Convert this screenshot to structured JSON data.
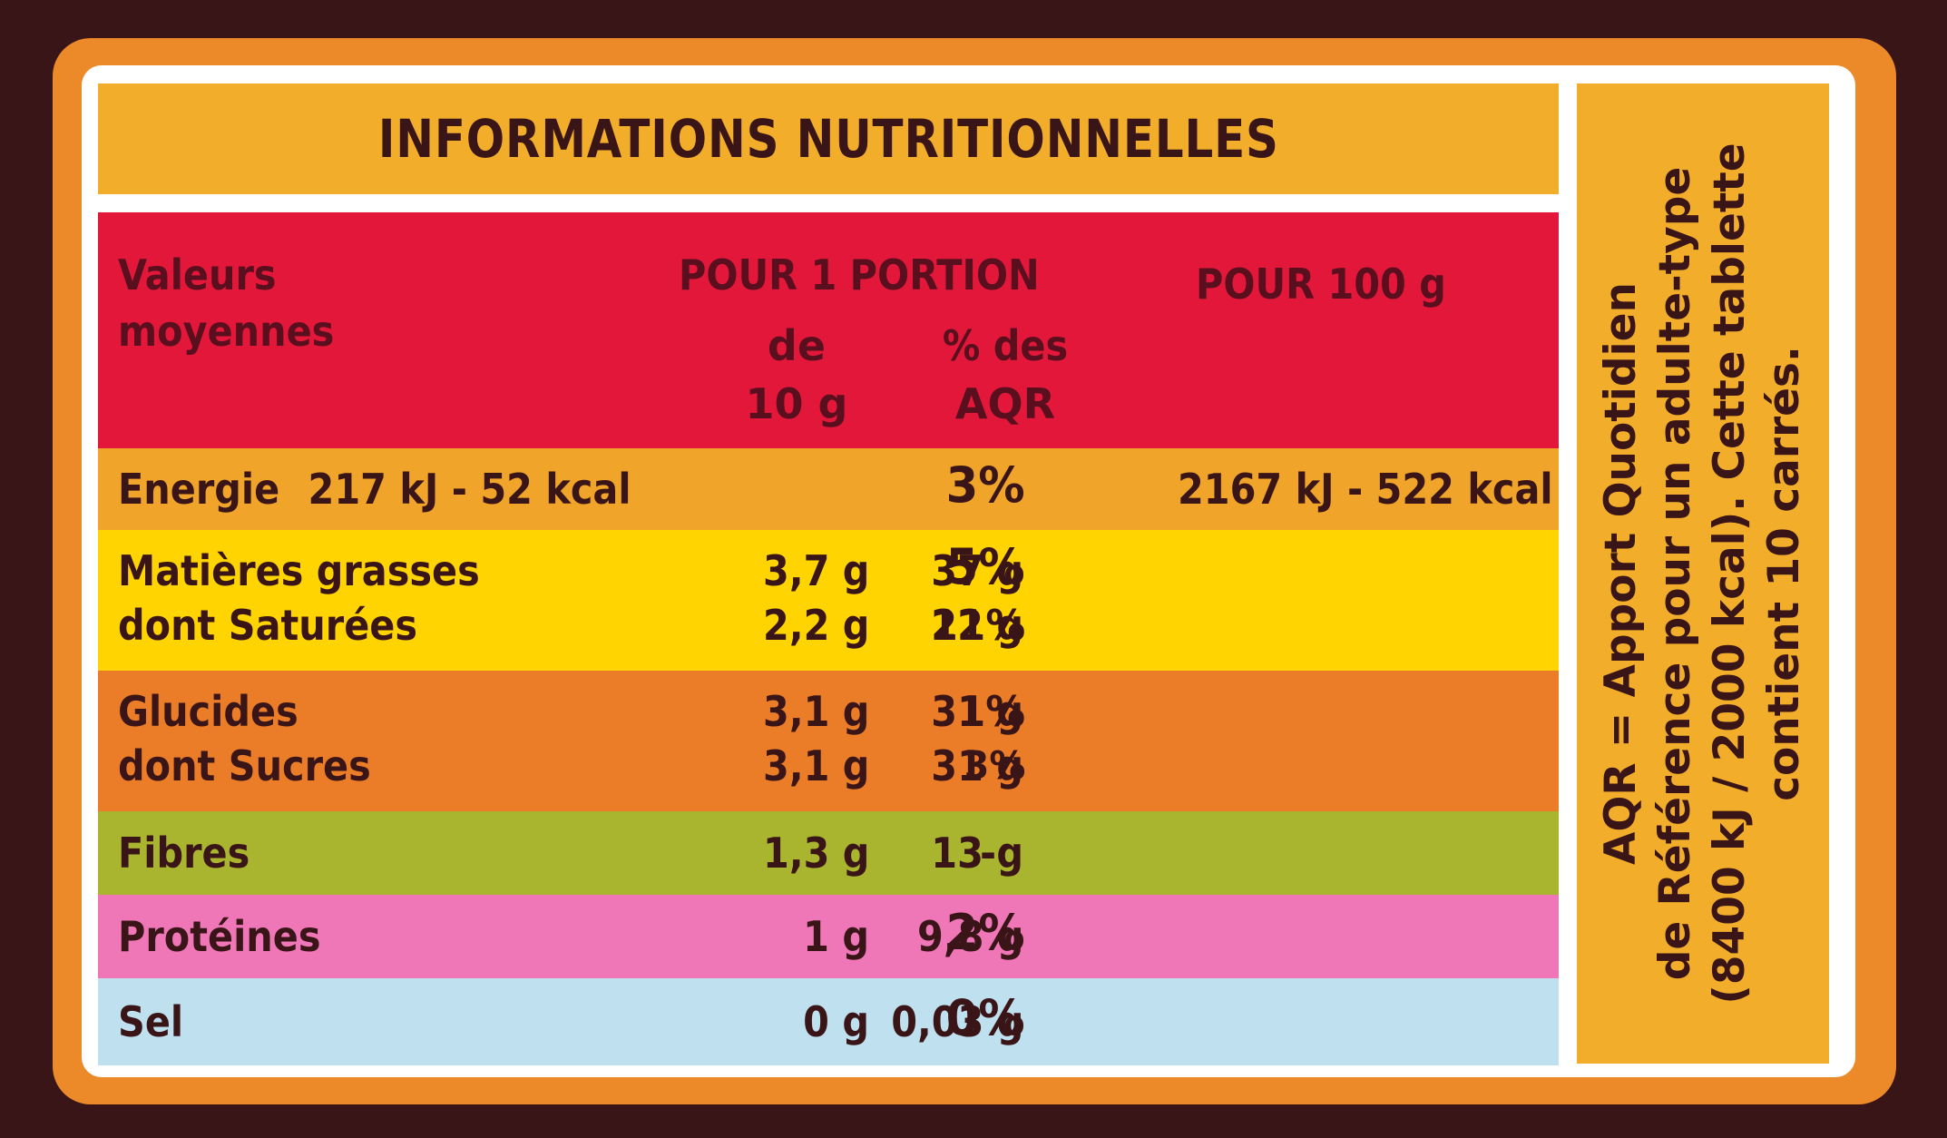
{
  "title": "INFORMATIONS NUTRITIONNELLES",
  "header": {
    "col_label_line1": "Valeurs",
    "col_label_line2": "moyennes",
    "portion": "POUR 1 PORTION",
    "portion_size_line1": "de",
    "portion_size_line2": "10 g",
    "aqr_line1": "% des",
    "aqr_line2": "AQR",
    "per100": "POUR 100 g"
  },
  "rows": [
    {
      "label": "Energie",
      "portion": "217 kJ - 52 kcal",
      "aqr": "3%",
      "per100": "2167 kJ - 522 kcal",
      "color": "#f0a42a"
    },
    {
      "label": "Matières grasses",
      "portion": "3,7 g",
      "aqr": "5%",
      "per100": "37 g",
      "color": "#ffd400"
    },
    {
      "label": "dont Saturées",
      "portion": "2,2 g",
      "aqr": "11%",
      "per100": "22 g",
      "color": "#ffd400"
    },
    {
      "label": "Glucides",
      "portion": "3,1 g",
      "aqr": "1%",
      "per100": "31 g",
      "color": "#ec7d28"
    },
    {
      "label": "dont Sucres",
      "portion": "3,1 g",
      "aqr": "3%",
      "per100": "31 g",
      "color": "#ec7d28"
    },
    {
      "label": "Fibres",
      "portion": "1,3 g",
      "aqr": "-",
      "per100": "13 g",
      "color": "#a9b52e"
    },
    {
      "label": "Protéines",
      "portion": "1 g",
      "aqr": "2%",
      "per100": "9,8 g",
      "color": "#ef77b8"
    },
    {
      "label": "Sel",
      "portion": "0 g",
      "aqr": "0%",
      "per100": "0,03 g",
      "color": "#bfe0ee"
    }
  ],
  "footnote": {
    "line1": "AQR = Apport Quotidien",
    "line2": "de Référence pour un adulte-type",
    "line3": "(8400 kJ / 2000 kcal). Cette tablette",
    "line4": "contient 10 carrés."
  }
}
